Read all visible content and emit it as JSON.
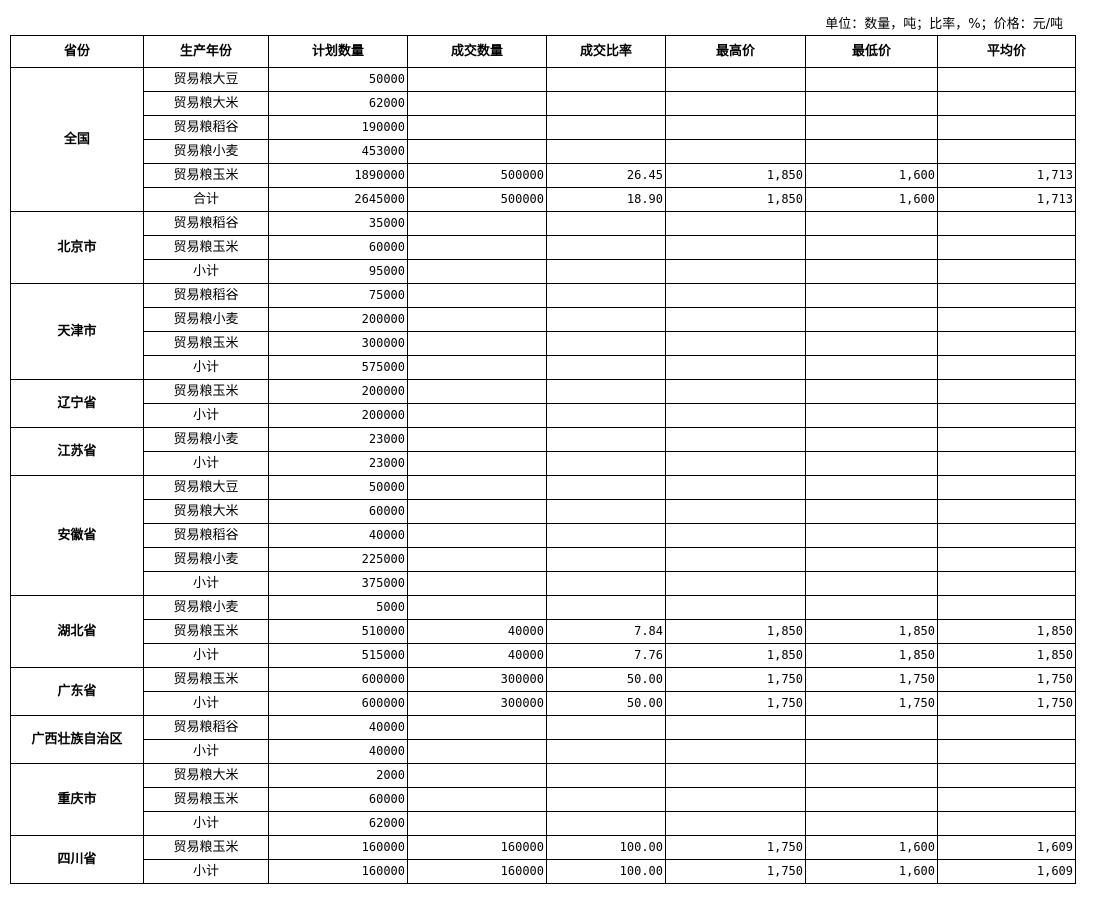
{
  "unit_note": "单位：数量，吨；比率，%；价格：元/吨",
  "columns": [
    "省份",
    "生产年份",
    "计划数量",
    "成交数量",
    "成交比率",
    "最高价",
    "最低价",
    "平均价"
  ],
  "groups": [
    {
      "province": "全国",
      "rows": [
        [
          "贸易粮大豆",
          "50000",
          "",
          "",
          "",
          "",
          ""
        ],
        [
          "贸易粮大米",
          "62000",
          "",
          "",
          "",
          "",
          ""
        ],
        [
          "贸易粮稻谷",
          "190000",
          "",
          "",
          "",
          "",
          ""
        ],
        [
          "贸易粮小麦",
          "453000",
          "",
          "",
          "",
          "",
          ""
        ],
        [
          "贸易粮玉米",
          "1890000",
          "500000",
          "26.45",
          "1,850",
          "1,600",
          "1,713"
        ],
        [
          "合计",
          "2645000",
          "500000",
          "18.90",
          "1,850",
          "1,600",
          "1,713"
        ]
      ]
    },
    {
      "province": "北京市",
      "rows": [
        [
          "贸易粮稻谷",
          "35000",
          "",
          "",
          "",
          "",
          ""
        ],
        [
          "贸易粮玉米",
          "60000",
          "",
          "",
          "",
          "",
          ""
        ],
        [
          "小计",
          "95000",
          "",
          "",
          "",
          "",
          ""
        ]
      ]
    },
    {
      "province": "天津市",
      "rows": [
        [
          "贸易粮稻谷",
          "75000",
          "",
          "",
          "",
          "",
          ""
        ],
        [
          "贸易粮小麦",
          "200000",
          "",
          "",
          "",
          "",
          ""
        ],
        [
          "贸易粮玉米",
          "300000",
          "",
          "",
          "",
          "",
          ""
        ],
        [
          "小计",
          "575000",
          "",
          "",
          "",
          "",
          ""
        ]
      ]
    },
    {
      "province": "辽宁省",
      "rows": [
        [
          "贸易粮玉米",
          "200000",
          "",
          "",
          "",
          "",
          ""
        ],
        [
          "小计",
          "200000",
          "",
          "",
          "",
          "",
          ""
        ]
      ]
    },
    {
      "province": "江苏省",
      "rows": [
        [
          "贸易粮小麦",
          "23000",
          "",
          "",
          "",
          "",
          ""
        ],
        [
          "小计",
          "23000",
          "",
          "",
          "",
          "",
          ""
        ]
      ]
    },
    {
      "province": "安徽省",
      "rows": [
        [
          "贸易粮大豆",
          "50000",
          "",
          "",
          "",
          "",
          ""
        ],
        [
          "贸易粮大米",
          "60000",
          "",
          "",
          "",
          "",
          ""
        ],
        [
          "贸易粮稻谷",
          "40000",
          "",
          "",
          "",
          "",
          ""
        ],
        [
          "贸易粮小麦",
          "225000",
          "",
          "",
          "",
          "",
          ""
        ],
        [
          "小计",
          "375000",
          "",
          "",
          "",
          "",
          ""
        ]
      ]
    },
    {
      "province": "湖北省",
      "rows": [
        [
          "贸易粮小麦",
          "5000",
          "",
          "",
          "",
          "",
          ""
        ],
        [
          "贸易粮玉米",
          "510000",
          "40000",
          "7.84",
          "1,850",
          "1,850",
          "1,850"
        ],
        [
          "小计",
          "515000",
          "40000",
          "7.76",
          "1,850",
          "1,850",
          "1,850"
        ]
      ]
    },
    {
      "province": "广东省",
      "rows": [
        [
          "贸易粮玉米",
          "600000",
          "300000",
          "50.00",
          "1,750",
          "1,750",
          "1,750"
        ],
        [
          "小计",
          "600000",
          "300000",
          "50.00",
          "1,750",
          "1,750",
          "1,750"
        ]
      ]
    },
    {
      "province": "广西壮族自治区",
      "rows": [
        [
          "贸易粮稻谷",
          "40000",
          "",
          "",
          "",
          "",
          ""
        ],
        [
          "小计",
          "40000",
          "",
          "",
          "",
          "",
          ""
        ]
      ]
    },
    {
      "province": "重庆市",
      "rows": [
        [
          "贸易粮大米",
          "2000",
          "",
          "",
          "",
          "",
          ""
        ],
        [
          "贸易粮玉米",
          "60000",
          "",
          "",
          "",
          "",
          ""
        ],
        [
          "小计",
          "62000",
          "",
          "",
          "",
          "",
          ""
        ]
      ]
    },
    {
      "province": "四川省",
      "rows": [
        [
          "贸易粮玉米",
          "160000",
          "160000",
          "100.00",
          "1,750",
          "1,600",
          "1,609"
        ],
        [
          "小计",
          "160000",
          "160000",
          "100.00",
          "1,750",
          "1,600",
          "1,609"
        ]
      ]
    }
  ]
}
